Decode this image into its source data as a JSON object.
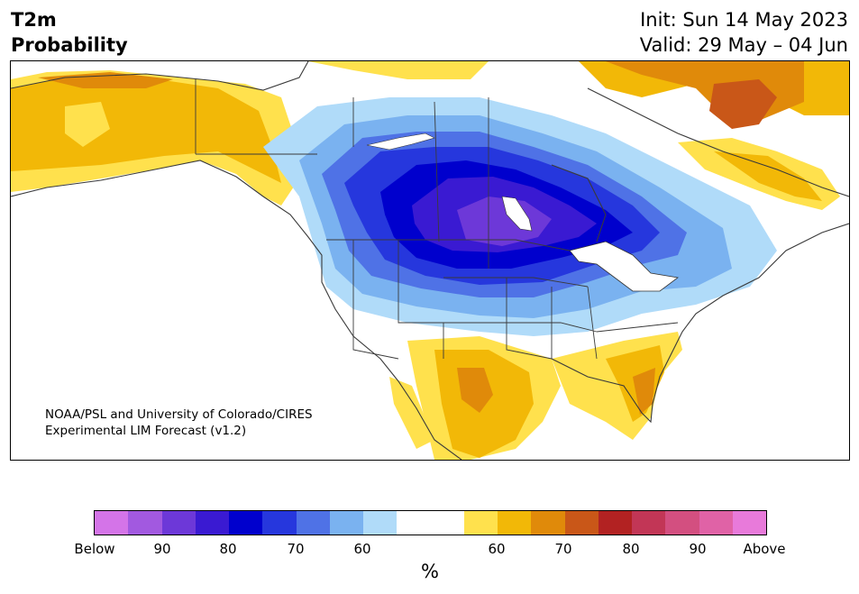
{
  "header": {
    "title_line1": "T2m",
    "title_line2": "Probability",
    "init_text": "Init: Sun 14 May 2023",
    "valid_text": "Valid: 29 May – 04 Jun"
  },
  "map": {
    "credit_line1": "NOAA/PSL and University of Colorado/CIRES",
    "credit_line2": "Experimental LIM Forecast (v1.2)"
  },
  "colorbar": {
    "colors": [
      "#d474e8",
      "#a259e0",
      "#6d38d8",
      "#3a1ad2",
      "#0000cd",
      "#2637dd",
      "#4f72e6",
      "#7ab2f0",
      "#b0dbf9",
      "#ffffff",
      "#ffffff",
      "#ffe14d",
      "#f2b807",
      "#e08a0a",
      "#c95718",
      "#b22222",
      "#c23656",
      "#d34f80",
      "#e062a6",
      "#e87ada"
    ],
    "tick_labels": [
      "Below",
      "90",
      "80",
      "70",
      "60",
      "60",
      "70",
      "80",
      "90",
      "Above"
    ],
    "unit": "%"
  }
}
